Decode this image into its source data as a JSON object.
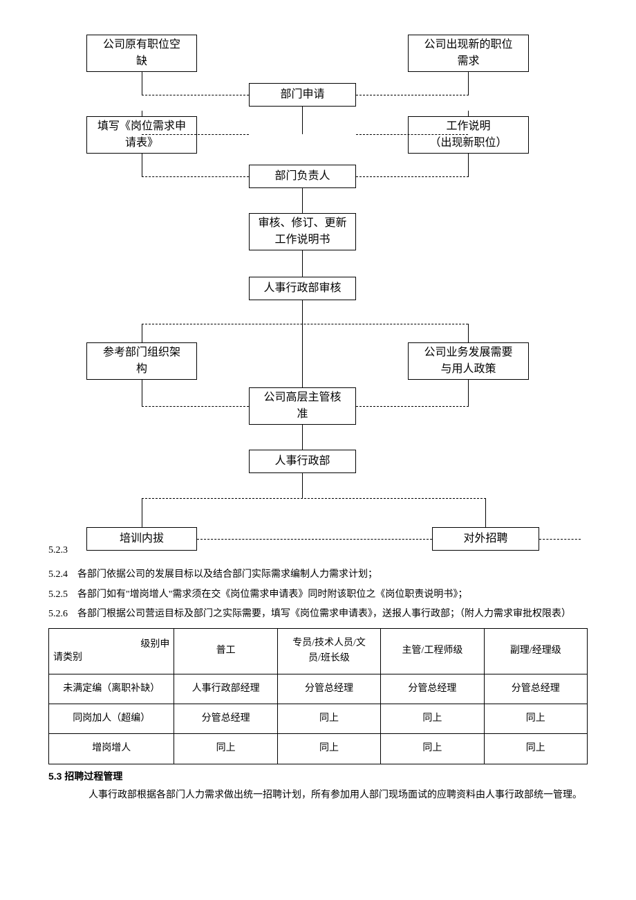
{
  "flowchart": {
    "nodes": {
      "vacancy": "公司原有职位空\n缺",
      "newpos": "公司出现新的职位\n需求",
      "deptApply": "部门申请",
      "reqForm": "填写《岗位需求申\n请表》",
      "jobDesc": "工作说明\n（出现新职位）",
      "deptHead": "部门负责人",
      "review": "审核、修订、更新\n工作说明书",
      "hrReview": "人事行政部审核",
      "orgRef": "参考部门组织架\n构",
      "bizPolicy": "公司业务发展需要\n与用人政策",
      "seniorApprove": "公司高层主管核\n准",
      "hrDept": "人事行政部",
      "internal": "培训内拔",
      "external": "对外招聘"
    },
    "label523": "5.2.3"
  },
  "listItems": [
    {
      "num": "5.2.4",
      "text": "各部门依据公司的发展目标以及结合部门实际需求编制人力需求计划；"
    },
    {
      "num": "5.2.5",
      "text": "各部门如有\"增岗增人\"需求须在交《岗位需求申请表》同时附该职位之《岗位职责说明书》；"
    },
    {
      "num": "5.2.6",
      "text": "各部门根据公司营运目标及部门之实际需要，填写《岗位需求申请表》，送报人事行政部；（附人力需求审批权限表）"
    }
  ],
  "table": {
    "corner": {
      "topRight": "级别申",
      "bottomLeft": "请类别"
    },
    "headers": [
      "普工",
      "专员/技术人员/文\n员/班长级",
      "主管/工程师级",
      "副理/经理级"
    ],
    "rows": [
      {
        "label": "未满定编（离职补缺）",
        "cells": [
          "人事行政部经理",
          "分管总经理",
          "分管总经理",
          "分管总经理"
        ]
      },
      {
        "label": "同岗加人（超编）",
        "cells": [
          "分管总经理",
          "同上",
          "同上",
          "同上"
        ]
      },
      {
        "label": "增岗增人",
        "cells": [
          "同上",
          "同上",
          "同上",
          "同上"
        ]
      }
    ],
    "colWidths": [
      "170px",
      "140px",
      "140px",
      "140px",
      "140px"
    ]
  },
  "section": {
    "heading": "5.3 招聘过程管理",
    "para": "人事行政部根据各部门人力需求做出统一招聘计划，所有参加用人部门现场面试的应聘资料由人事行政部统一管理。"
  },
  "colors": {
    "text": "#000000",
    "border": "#000000",
    "bg": "#ffffff"
  }
}
